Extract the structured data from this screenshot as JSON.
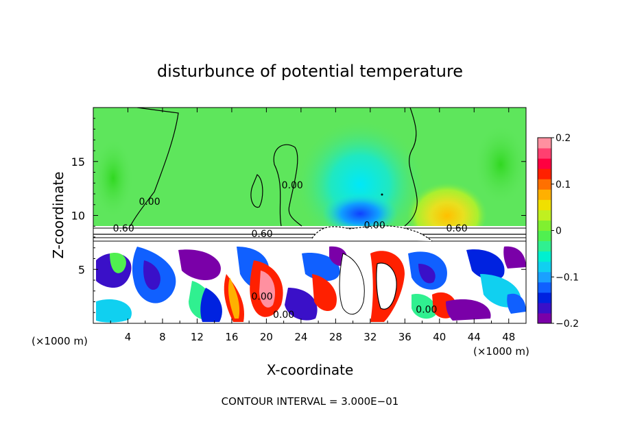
{
  "chart_data": {
    "type": "heatmap",
    "title": "disturbunce of potential temperature",
    "xlabel": "X-coordinate",
    "ylabel": "Z-coordinate",
    "x_unit": "(×1000 m)",
    "z_unit": "(×1000 m)",
    "xlim": [
      0,
      50
    ],
    "zlim": [
      0,
      20
    ],
    "x_ticks": [
      4,
      8,
      12,
      16,
      20,
      24,
      28,
      32,
      36,
      40,
      44,
      48
    ],
    "x_tick_labels": [
      "4",
      "8",
      "12",
      "16",
      "20",
      "24",
      "28",
      "32",
      "36",
      "40",
      "44",
      "48"
    ],
    "z_ticks": [
      5,
      10,
      15
    ],
    "z_tick_labels": [
      "5",
      "10",
      "15"
    ],
    "colorbar": {
      "min": -0.2,
      "max": 0.2,
      "ticks": [
        0.2,
        0.1,
        0,
        -0.1,
        -0.2
      ],
      "tick_labels": [
        "0.2",
        "0.1",
        "0",
        "−0.1",
        "−0.2"
      ],
      "colors": [
        "#7a00a8",
        "#3a10c8",
        "#0022e0",
        "#1060ff",
        "#1aa0ff",
        "#10d0f0",
        "#00f0d0",
        "#30f090",
        "#50f050",
        "#80f030",
        "#c0f020",
        "#f0e000",
        "#ffb000",
        "#ff7000",
        "#ff2000",
        "#ff0040",
        "#ff4070",
        "#ff90a0"
      ]
    },
    "contour_labels": [
      {
        "text": "0.00",
        "x": 6.5,
        "z": 11.0
      },
      {
        "text": "0.00",
        "x": 23.0,
        "z": 12.5
      },
      {
        "text": "0.60",
        "x": 3.5,
        "z": 8.5
      },
      {
        "text": "0.60",
        "x": 19.5,
        "z": 8.0
      },
      {
        "text": "0.60",
        "x": 42.0,
        "z": 8.5
      },
      {
        "text": "0.00",
        "x": 19.5,
        "z": 2.2
      },
      {
        "text": "0.00",
        "x": 22.0,
        "z": 0.5
      },
      {
        "text": "0.00",
        "x": 38.5,
        "z": 1.0
      },
      {
        "text": "0.00",
        "x": 32.5,
        "z": 8.8
      }
    ],
    "contour_interval_text": "CONTOUR INTERVAL = 3.000E−01"
  },
  "colors": {
    "upper_background": "#5ee65c",
    "neutral_green": "#40e030",
    "cyan_core": "#00f0e0",
    "blue_core": "#1068ff",
    "warm_core": "#ffc000"
  }
}
